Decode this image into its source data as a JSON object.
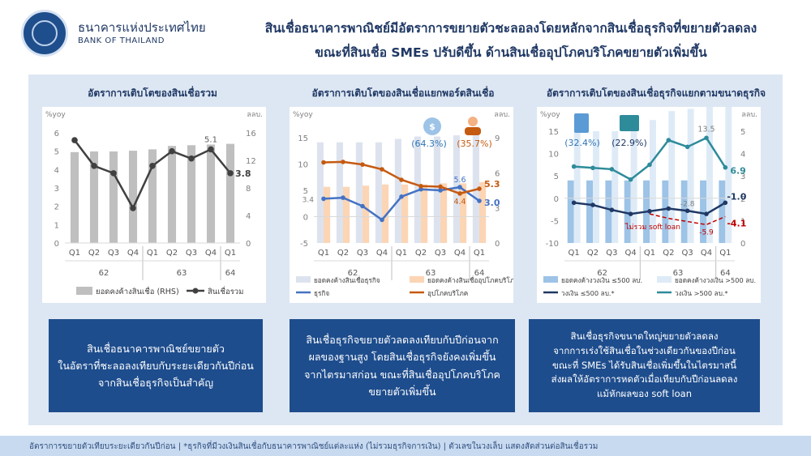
{
  "header": {
    "bank_name_th": "ธนาคารแห่งประเทศไทย",
    "bank_name_en": "BANK OF THAILAND",
    "headline_line1": "สินเชื่อธนาคารพาณิชย์มีอัตราการขยายตัวชะลอลงโดยหลักจากสินเชื่อธุรกิจที่ขยายตัวลดลง",
    "headline_line2": "ขณะที่สินเชื่อ SMEs ปรับดีขึ้น ด้านสินเชื่ออุปโภคบริโภคขยายตัวเพิ่มขึ้น"
  },
  "panel_titles": {
    "p1": "อัตราการเติบโตของสินเชื่อรวม",
    "p2": "อัตราการเติบโตของสินเชื่อแยกพอร์ตสินเชื่อ",
    "p3": "อัตราการเติบโตของสินเชื่อธุรกิจแยกตามขนาดธุรกิจ"
  },
  "chart_data": [
    {
      "type": "bar+line",
      "title": "อัตราการเติบโตของสินเชื่อรวม",
      "left_axis_label": "%yoy",
      "right_axis_label": "ลลบ.",
      "left_ticks": [
        "0",
        "1",
        "2",
        "3",
        "4",
        "5",
        "6"
      ],
      "right_ticks": [
        "0",
        "4",
        "8",
        "12",
        "16"
      ],
      "left_range": [
        0,
        6
      ],
      "right_range": [
        0,
        16
      ],
      "categories": [
        "Q1",
        "Q2",
        "Q3",
        "Q4",
        "Q1",
        "Q2",
        "Q3",
        "Q4",
        "Q1"
      ],
      "year_labels": [
        "62",
        "63",
        "64"
      ],
      "bar_series": {
        "name": "ยอดคงค้างสินเชื่อ (RHS)",
        "values": [
          13.2,
          13.3,
          13.3,
          13.4,
          13.6,
          14.1,
          14.2,
          14.3,
          14.4
        ],
        "color": "#bfbfbf"
      },
      "line_series": {
        "name": "สินเชื่อรวม",
        "values": [
          5.6,
          4.2,
          3.8,
          1.9,
          4.2,
          5.0,
          4.6,
          5.1,
          3.8
        ],
        "color": "#404040"
      },
      "annotations": [
        {
          "text": "5.1",
          "index": 7,
          "series": "line"
        },
        {
          "text": "3.8",
          "index": 8,
          "series": "line"
        }
      ],
      "legend": [
        "ยอดคงค้างสินเชื่อ (RHS)",
        "สินเชื่อรวม"
      ]
    },
    {
      "type": "bar+line",
      "title": "อัตราการเติบโตของสินเชื่อแยกพอร์ตสินเชื่อ",
      "left_axis_label": "%yoy",
      "right_axis_label": "ลลบ.",
      "left_ticks": [
        "-5",
        "0",
        "5",
        "10",
        "15"
      ],
      "right_ticks": [
        "0",
        "3",
        "6",
        "9"
      ],
      "left_range": [
        -5,
        15
      ],
      "right_range": [
        0,
        9
      ],
      "categories": [
        "Q1",
        "Q2",
        "Q3",
        "Q4",
        "Q1",
        "Q2",
        "Q3",
        "Q4",
        "Q1"
      ],
      "year_labels": [
        "62",
        "63",
        "64"
      ],
      "bar_series": [
        {
          "name": "ยอดคงค้างสินเชื่อธุรกิจ",
          "values": [
            8.6,
            8.6,
            8.6,
            8.6,
            8.9,
            9.1,
            9.1,
            9.2,
            9.2
          ],
          "color": "#dde3ee"
        },
        {
          "name": "ยอดคงค้างสินเชื่ออุปโภคบริโภค",
          "values": [
            4.8,
            4.8,
            4.9,
            5.0,
            5.0,
            5.0,
            5.1,
            5.1,
            5.2
          ],
          "color": "#fcd5b5"
        }
      ],
      "line_series": [
        {
          "name": "ธุรกิจ",
          "values": [
            3.4,
            3.6,
            2.0,
            -0.6,
            3.8,
            5.2,
            5.0,
            5.6,
            3.0
          ],
          "color": "#4472c4"
        },
        {
          "name": "อุปโภคบริโภค",
          "values": [
            10.3,
            10.4,
            9.9,
            9.0,
            7.0,
            5.8,
            5.7,
            4.4,
            5.3
          ],
          "color": "#c55a11"
        }
      ],
      "share_labels": [
        "(64.3%)",
        "(35.7%)"
      ],
      "annotations": [
        {
          "text": "3.4"
        },
        {
          "text": "5.6"
        },
        {
          "text": "4.4"
        },
        {
          "text": "5.3"
        },
        {
          "text": "3.0"
        }
      ],
      "legend": [
        "ยอดคงค้างสินเชื่อธุรกิจ",
        "ยอดคงค้างสินเชื่ออุปโภคบริโภค",
        "ธุรกิจ",
        "อุปโภคบริโภค"
      ]
    },
    {
      "type": "bar+line",
      "title": "อัตราการเติบโตของสินเชื่อธุรกิจแยกตามขนาดธุรกิจ",
      "left_axis_label": "%yoy",
      "right_axis_label": "ลลบ.",
      "left_ticks": [
        "-10",
        "-5",
        "0",
        "5",
        "10",
        "15"
      ],
      "right_ticks": [
        "0",
        "1",
        "2",
        "3",
        "4",
        "5"
      ],
      "left_range": [
        -10,
        15
      ],
      "right_range": [
        0,
        5
      ],
      "categories": [
        "Q1",
        "Q2",
        "Q3",
        "Q4",
        "Q1",
        "Q2",
        "Q3",
        "Q4",
        "Q1"
      ],
      "year_labels": [
        "62",
        "63",
        "64"
      ],
      "bar_series": [
        {
          "name": "ยอดคงค้างวงเงิน ≤500 ลบ.",
          "values": [
            2.8,
            2.8,
            2.8,
            2.8,
            2.8,
            2.8,
            2.8,
            2.8,
            2.8
          ],
          "color": "#9dc3e6"
        },
        {
          "name": "ยอดคงค้างวงเงิน >500 ลบ.",
          "values": [
            5.0,
            5.0,
            5.0,
            5.1,
            5.5,
            5.9,
            6.0,
            6.3,
            6.3
          ],
          "color": "#deebf7"
        }
      ],
      "line_series": [
        {
          "name": "วงเงิน ≤500 ลบ.*",
          "values": [
            -1.0,
            -1.5,
            -2.6,
            -3.5,
            -2.9,
            -2.3,
            -2.8,
            -3.5,
            -1.0
          ],
          "color": "#1f3864"
        },
        {
          "name": "วงเงิน >500 ลบ.*",
          "values": [
            7.1,
            6.8,
            6.5,
            4.2,
            7.5,
            13.0,
            11.5,
            13.5,
            6.9
          ],
          "color": "#2e8b9a"
        },
        {
          "name": "ไม่รวม soft loan",
          "values": [
            null,
            null,
            null,
            null,
            -3.5,
            -4.5,
            -5.2,
            -5.9,
            -4.1
          ],
          "color": "#c00000",
          "dashed": true
        }
      ],
      "share_labels": [
        "(32.4%)",
        "(22.9%)"
      ],
      "annotations": [
        {
          "text": "13.5"
        },
        {
          "text": "6.9"
        },
        {
          "text": "-2.8"
        },
        {
          "text": "-1.0"
        },
        {
          "text": "-5.9"
        },
        {
          "text": "-4.1"
        },
        {
          "text": "ไม่รวม soft loan"
        }
      ],
      "legend": [
        "ยอดคงค้างวงเงิน ≤500 ลบ.",
        "ยอดคงค้างวงเงิน >500 ลบ.",
        "วงเงิน ≤500 ลบ.*",
        "วงเงิน >500 ลบ.*"
      ]
    }
  ],
  "summary_boxes": [
    [
      "สินเชื่อธนาคารพาณิชย์ขยายตัว",
      "ในอัตราที่ชะลอลงเทียบกับระยะเดียวกันปีก่อน",
      "จากสินเชื่อธุรกิจเป็นสำคัญ"
    ],
    [
      "สินเชื่อธุรกิจขยายตัวลดลงเทียบกับปีก่อนจาก",
      "ผลของฐานสูง โดยสินเชื่อธุรกิจยังคงเพิ่มขึ้น",
      "จากไตรมาสก่อน ขณะที่สินเชื่ออุปโภคบริโภค",
      "ขยายตัวเพิ่มขึ้น"
    ],
    [
      "สินเชื่อธุรกิจขนาดใหญ่ขยายตัวลดลง",
      "จากการเร่งใช้สินเชื่อในช่วงเดียวกันของปีก่อน",
      "ขณะที่ SMEs ได้รับสินเชื่อเพิ่มขึ้นในไตรมาสนี้",
      "ส่งผลให้อัตราการหดตัวเมื่อเทียบกับปีก่อนลดลง",
      "แม้หักผลของ soft loan"
    ]
  ],
  "footer": "อัตราการขยายตัวเทียบระยะเดียวกันปีก่อน | *ธุรกิจที่มีวงเงินสินเชื่อกับธนาคารพาณิชย์แต่ละแห่ง (ไม่รวมธุรกิจการเงิน) | ตัวเลขในวงเล็บ แสดงสัดส่วนต่อสินเชื่อรวม"
}
